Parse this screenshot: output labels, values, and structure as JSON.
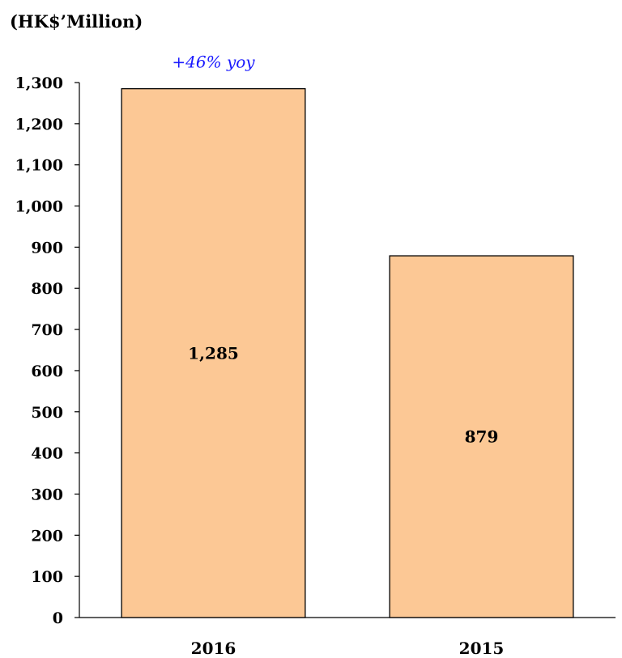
{
  "chart_data": {
    "type": "bar",
    "unit_label": "(HK$’Million)",
    "categories": [
      "2016",
      "2015"
    ],
    "values": [
      1285,
      879
    ],
    "value_labels": [
      "1,285",
      "879"
    ],
    "ylim": [
      0,
      1300
    ],
    "yticks": [
      0,
      100,
      200,
      300,
      400,
      500,
      600,
      700,
      800,
      900,
      1000,
      1100,
      1200,
      1300
    ],
    "ytick_labels": [
      "0",
      "100",
      "200",
      "300",
      "400",
      "500",
      "600",
      "700",
      "800",
      "900",
      "1,000",
      "1,100",
      "1,200",
      "1,300"
    ],
    "annotation": {
      "text": "+46% yoy",
      "category": "2016"
    },
    "bar_color": "#fcc895",
    "annotation_color": "#1a1aff",
    "grid": false,
    "legend": "none"
  }
}
